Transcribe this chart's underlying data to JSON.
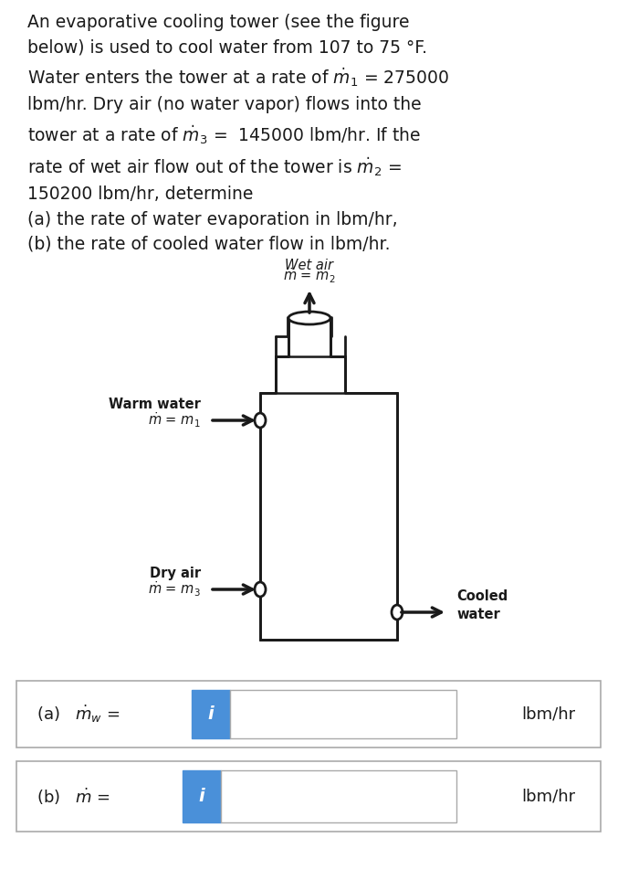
{
  "title_text": "An evaporative cooling tower (see the figure\nbelow) is used to cool water from 107 to 75 °F.\nWater enters the tower at a rate of $\\dot{m}_1$ = 275000\nlbm/hr. Dry air (no water vapor) flows into the\ntower at a rate of $\\dot{m}_3$ = 145000 lbm/hr. If the\nrate of wet air flow out of the tower is $\\dot{m}_2$ =\n150200 lbm/hr, determine\n(a) the rate of water evaporation in lbm/hr,\n(b) the rate of cooled water flow in lbm/hr.",
  "bg_color": "#ffffff",
  "text_color": "#1a1a1a",
  "box_border_color": "#cccccc",
  "input_box_color": "#4a90d9",
  "input_field_color": "#ffffff",
  "label_a": "(a)   $\\dot{m}_w$ =",
  "label_b": "(b)   $\\dot{m}$ =",
  "unit_label": "lbm/hr",
  "wet_air_label": "Wet air\n$\\dot{m}$ = $m_2$",
  "warm_water_label": "Warm water\n$\\dot{m}$ = $m_1$",
  "dry_air_label": "Dry air\n$\\dot{m}$ = $m_3$",
  "cooled_water_label": "Cooled\nwater"
}
